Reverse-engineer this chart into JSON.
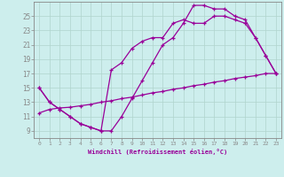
{
  "xlabel": "Windchill (Refroidissement éolien,°C)",
  "background_color": "#cdeeed",
  "line_color": "#990099",
  "grid_color": "#b0d4cc",
  "xlim": [
    -0.5,
    23.5
  ],
  "ylim": [
    8.0,
    27.0
  ],
  "xticks": [
    0,
    1,
    2,
    3,
    4,
    5,
    6,
    7,
    8,
    9,
    10,
    11,
    12,
    13,
    14,
    15,
    16,
    17,
    18,
    19,
    20,
    21,
    22,
    23
  ],
  "yticks": [
    9,
    11,
    13,
    15,
    17,
    19,
    21,
    23,
    25
  ],
  "line1_x": [
    0,
    1,
    2,
    3,
    4,
    5,
    6,
    7,
    8,
    9,
    10,
    11,
    12,
    13,
    14,
    15,
    16,
    17,
    18,
    19,
    20,
    21,
    22,
    23
  ],
  "line1_y": [
    15,
    13,
    12,
    11,
    10,
    9.5,
    9,
    9,
    11,
    13.5,
    16,
    18.5,
    21,
    22,
    24,
    26.5,
    26.5,
    26,
    26,
    25,
    24.5,
    22,
    19.5,
    17
  ],
  "line2_x": [
    0,
    1,
    2,
    3,
    4,
    5,
    6,
    7,
    8,
    9,
    10,
    11,
    12,
    13,
    14,
    15,
    16,
    17,
    18,
    19,
    20,
    21,
    22,
    23
  ],
  "line2_y": [
    15,
    13,
    12,
    11,
    10,
    9.5,
    9,
    17.5,
    18.5,
    20.5,
    21.5,
    22,
    22,
    24,
    24.5,
    24,
    24,
    25,
    25,
    24.5,
    24,
    22,
    19.5,
    17
  ],
  "line3_x": [
    0,
    1,
    2,
    3,
    4,
    5,
    6,
    7,
    8,
    9,
    10,
    11,
    12,
    13,
    14,
    15,
    16,
    17,
    18,
    19,
    20,
    21,
    22,
    23
  ],
  "line3_y": [
    11.5,
    12,
    12.2,
    12.3,
    12.5,
    12.7,
    13.0,
    13.2,
    13.5,
    13.7,
    14.0,
    14.3,
    14.5,
    14.8,
    15.0,
    15.3,
    15.5,
    15.8,
    16.0,
    16.3,
    16.5,
    16.7,
    17.0,
    17.0
  ]
}
